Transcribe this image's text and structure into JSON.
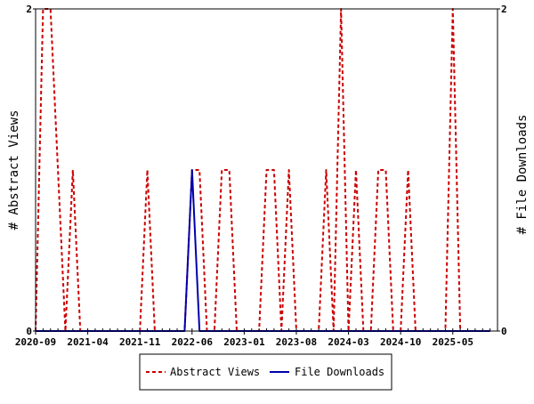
{
  "chart_data": {
    "type": "line",
    "y_left_label": "# Abstract Views",
    "y_right_label": "# File Downloads",
    "ylim_left": [
      0,
      2
    ],
    "ylim_right": [
      0,
      2
    ],
    "y_left_ticks": [
      "0",
      "2"
    ],
    "y_right_ticks": [
      "0",
      "2"
    ],
    "x_range": [
      "2020-09",
      "2025-11"
    ],
    "x_tick_labels": [
      "2020-09",
      "2021-04",
      "2021-11",
      "2022-06",
      "2023-01",
      "2023-08",
      "2024-03",
      "2024-10",
      "2025-05"
    ],
    "grid": false,
    "legend_position": "bottom",
    "series": [
      {
        "name": "Abstract Views",
        "color": "#cc0000",
        "style": "dashed",
        "x": [
          "2020-09",
          "2020-10",
          "2020-11",
          "2020-12",
          "2021-01",
          "2021-02",
          "2021-03",
          "2021-04",
          "2021-05",
          "2021-06",
          "2021-07",
          "2021-08",
          "2021-09",
          "2021-10",
          "2021-11",
          "2021-12",
          "2022-01",
          "2022-02",
          "2022-03",
          "2022-04",
          "2022-05",
          "2022-06",
          "2022-07",
          "2022-08",
          "2022-09",
          "2022-10",
          "2022-11",
          "2022-12",
          "2023-01",
          "2023-02",
          "2023-03",
          "2023-04",
          "2023-05",
          "2023-06",
          "2023-07",
          "2023-08",
          "2023-09",
          "2023-10",
          "2023-11",
          "2023-12",
          "2024-01",
          "2024-02",
          "2024-03",
          "2024-04",
          "2024-05",
          "2024-06",
          "2024-07",
          "2024-08",
          "2024-09",
          "2024-10",
          "2024-11",
          "2024-12",
          "2025-01",
          "2025-02",
          "2025-03",
          "2025-04",
          "2025-05",
          "2025-06",
          "2025-07",
          "2025-08",
          "2025-09",
          "2025-10"
        ],
        "values": [
          0,
          2,
          2,
          1,
          0,
          1,
          0,
          0,
          0,
          0,
          0,
          0,
          0,
          0,
          0,
          1,
          0,
          0,
          0,
          0,
          0,
          1,
          1,
          0,
          0,
          1,
          1,
          0,
          0,
          0,
          0,
          1,
          1,
          0,
          1,
          0,
          0,
          0,
          0,
          1,
          0,
          2,
          0,
          1,
          0,
          0,
          1,
          1,
          0,
          0,
          1,
          0,
          0,
          0,
          0,
          0,
          2,
          0,
          0,
          0,
          0,
          0
        ]
      },
      {
        "name": "File Downloads",
        "color": "#0000aa",
        "style": "solid",
        "x": [
          "2020-09",
          "2020-10",
          "2020-11",
          "2020-12",
          "2021-01",
          "2021-02",
          "2021-03",
          "2021-04",
          "2021-05",
          "2021-06",
          "2021-07",
          "2021-08",
          "2021-09",
          "2021-10",
          "2021-11",
          "2021-12",
          "2022-01",
          "2022-02",
          "2022-03",
          "2022-04",
          "2022-05",
          "2022-06",
          "2022-07",
          "2022-08",
          "2022-09",
          "2022-10",
          "2022-11",
          "2022-12",
          "2023-01",
          "2023-02",
          "2023-03",
          "2023-04",
          "2023-05",
          "2023-06",
          "2023-07",
          "2023-08",
          "2023-09",
          "2023-10",
          "2023-11",
          "2023-12",
          "2024-01",
          "2024-02",
          "2024-03",
          "2024-04",
          "2024-05",
          "2024-06",
          "2024-07",
          "2024-08",
          "2024-09",
          "2024-10",
          "2024-11",
          "2024-12",
          "2025-01",
          "2025-02",
          "2025-03",
          "2025-04",
          "2025-05",
          "2025-06",
          "2025-07",
          "2025-08",
          "2025-09",
          "2025-10"
        ],
        "values": [
          0,
          0,
          0,
          0,
          0,
          0,
          0,
          0,
          0,
          0,
          0,
          0,
          0,
          0,
          0,
          0,
          0,
          0,
          0,
          0,
          0,
          1,
          0,
          0,
          0,
          0,
          0,
          0,
          0,
          0,
          0,
          0,
          0,
          0,
          0,
          0,
          0,
          0,
          0,
          0,
          0,
          0,
          0,
          0,
          0,
          0,
          0,
          0,
          0,
          0,
          0,
          0,
          0,
          0,
          0,
          0,
          0,
          0,
          0,
          0,
          0,
          0
        ]
      }
    ]
  }
}
